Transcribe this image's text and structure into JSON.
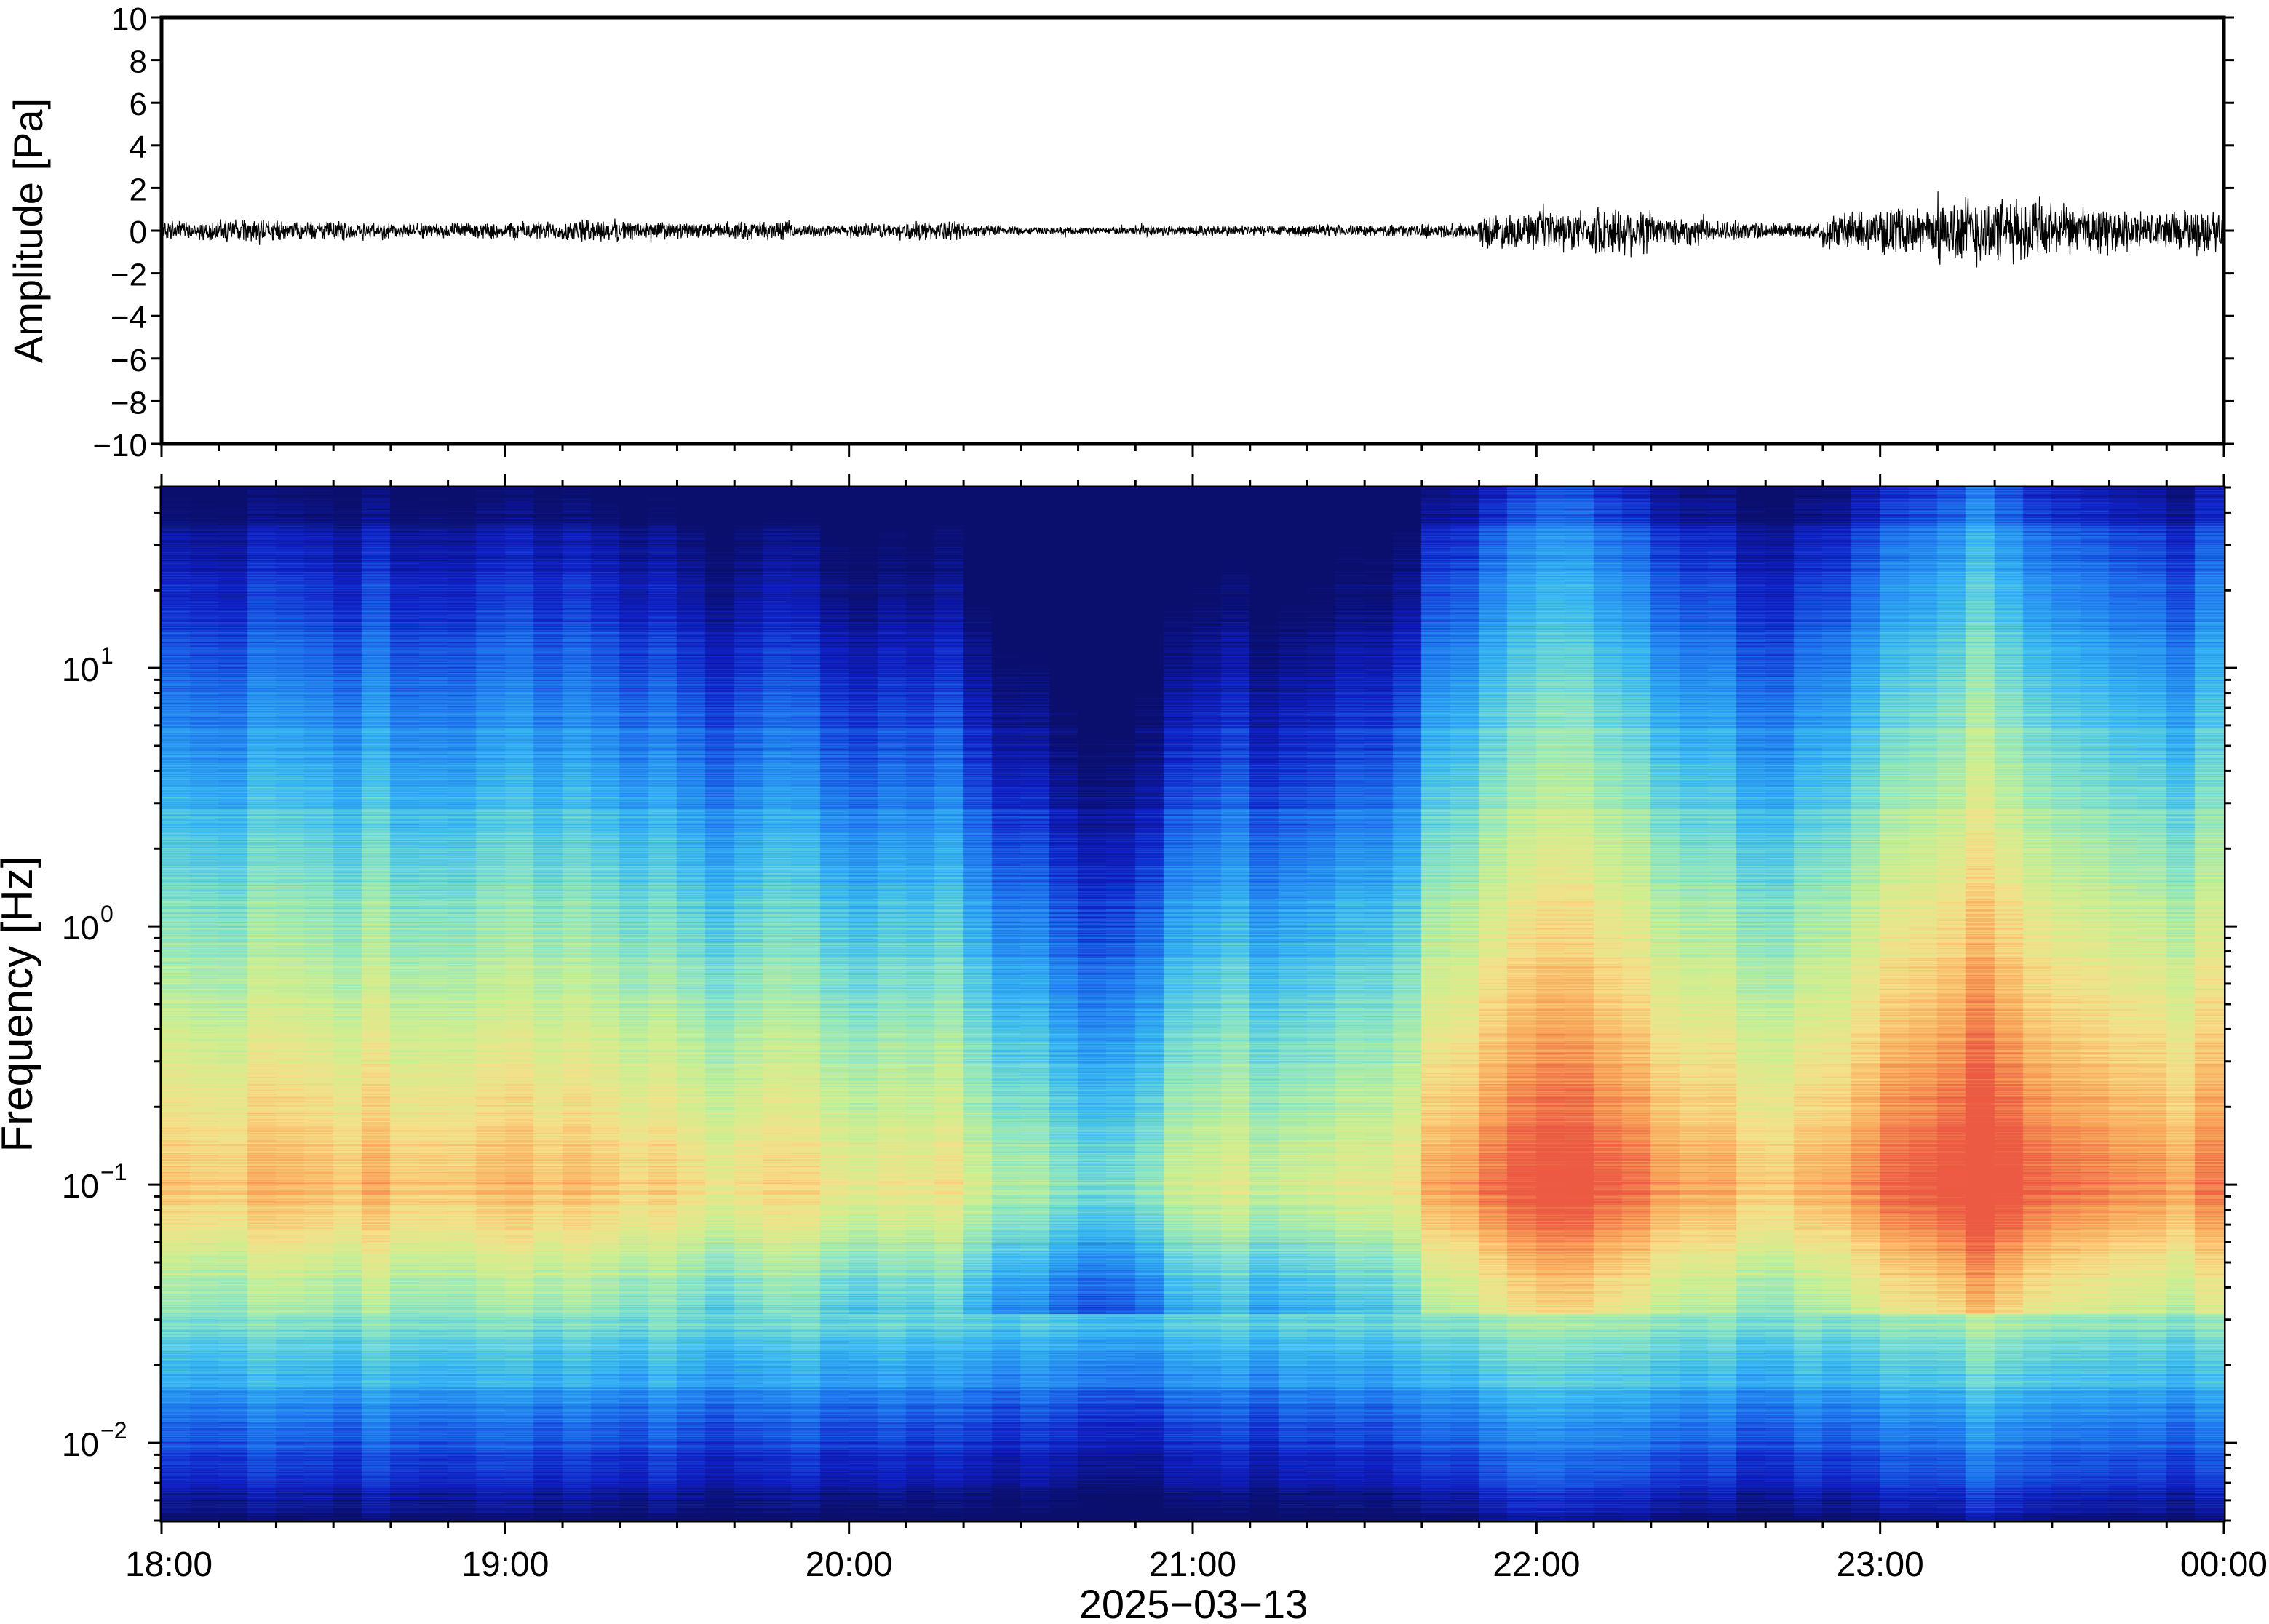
{
  "chart_data": [
    {
      "type": "line",
      "panel": "waveform",
      "ylabel": "Amplitude [Pa]",
      "ylim": [
        -10,
        10
      ],
      "yticks": [
        10,
        8,
        6,
        4,
        2,
        0,
        -2,
        -4,
        -6,
        -8,
        -10
      ],
      "ytick_labels": [
        "10",
        "8",
        "6",
        "4",
        "2",
        "0",
        "−2",
        "−4",
        "−6",
        "−8",
        "−10"
      ],
      "xlim": [
        "18:00",
        "00:00"
      ],
      "series": [
        {
          "envelope_by_10min": {
            "x": [
              "18:00",
              "18:10",
              "18:20",
              "18:30",
              "18:40",
              "18:50",
              "19:00",
              "19:10",
              "19:20",
              "19:30",
              "19:40",
              "19:50",
              "20:00",
              "20:10",
              "20:20",
              "20:30",
              "20:40",
              "20:50",
              "21:00",
              "21:10",
              "21:20",
              "21:30",
              "21:40",
              "21:50",
              "22:00",
              "22:10",
              "22:20",
              "22:30",
              "22:40",
              "22:50",
              "23:00",
              "23:10",
              "23:20",
              "23:30",
              "23:40",
              "23:50"
            ],
            "amplitude": [
              0.5,
              0.6,
              0.5,
              0.5,
              0.4,
              0.4,
              0.5,
              0.6,
              0.5,
              0.4,
              0.5,
              0.3,
              0.4,
              0.5,
              0.3,
              0.2,
              0.2,
              0.3,
              0.3,
              0.3,
              0.3,
              0.3,
              0.4,
              0.9,
              1.0,
              1.3,
              0.8,
              0.5,
              0.4,
              1.0,
              1.2,
              1.9,
              1.7,
              1.3,
              1.0,
              1.1
            ]
          }
        }
      ]
    },
    {
      "type": "heatmap",
      "panel": "spectrogram",
      "ylabel": "Frequency [Hz]",
      "yscale": "log",
      "ylim": [
        0.005,
        50
      ],
      "yticks": [
        0.01,
        0.1,
        1,
        10
      ],
      "ytick_labels": [
        {
          "base": "10",
          "exp": "−2"
        },
        {
          "base": "10",
          "exp": "−1"
        },
        {
          "base": "10",
          "exp": "0"
        },
        {
          "base": "10",
          "exp": "1"
        }
      ],
      "xlabel": "2025−03−13",
      "xlim": [
        "18:00",
        "00:00"
      ],
      "xticks": [
        "18:00",
        "19:00",
        "20:00",
        "21:00",
        "22:00",
        "23:00",
        "00:00"
      ],
      "colormap": [
        "#0a0f6e",
        "#1020c8",
        "#1e74ee",
        "#37b8f2",
        "#86e4c8",
        "#ccf090",
        "#f7e08a",
        "#f9a85a",
        "#ec5a44"
      ],
      "column_minutes": 5,
      "power_by_5min": [
        0.72,
        0.72,
        0.7,
        0.74,
        0.76,
        0.74,
        0.73,
        0.75,
        0.7,
        0.72,
        0.71,
        0.73,
        0.75,
        0.74,
        0.74,
        0.73,
        0.7,
        0.68,
        0.67,
        0.64,
        0.66,
        0.7,
        0.66,
        0.64,
        0.6,
        0.62,
        0.64,
        0.66,
        0.56,
        0.5,
        0.46,
        0.4,
        0.38,
        0.4,
        0.46,
        0.54,
        0.56,
        0.58,
        0.54,
        0.52,
        0.55,
        0.58,
        0.6,
        0.62,
        0.78,
        0.82,
        0.86,
        0.9,
        0.94,
        0.96,
        0.9,
        0.86,
        0.8,
        0.78,
        0.76,
        0.74,
        0.72,
        0.74,
        0.8,
        0.86,
        0.9,
        0.94,
        0.98,
        1.0,
        0.96,
        0.9,
        0.88,
        0.86,
        0.84,
        0.82,
        0.8,
        0.86
      ]
    }
  ]
}
